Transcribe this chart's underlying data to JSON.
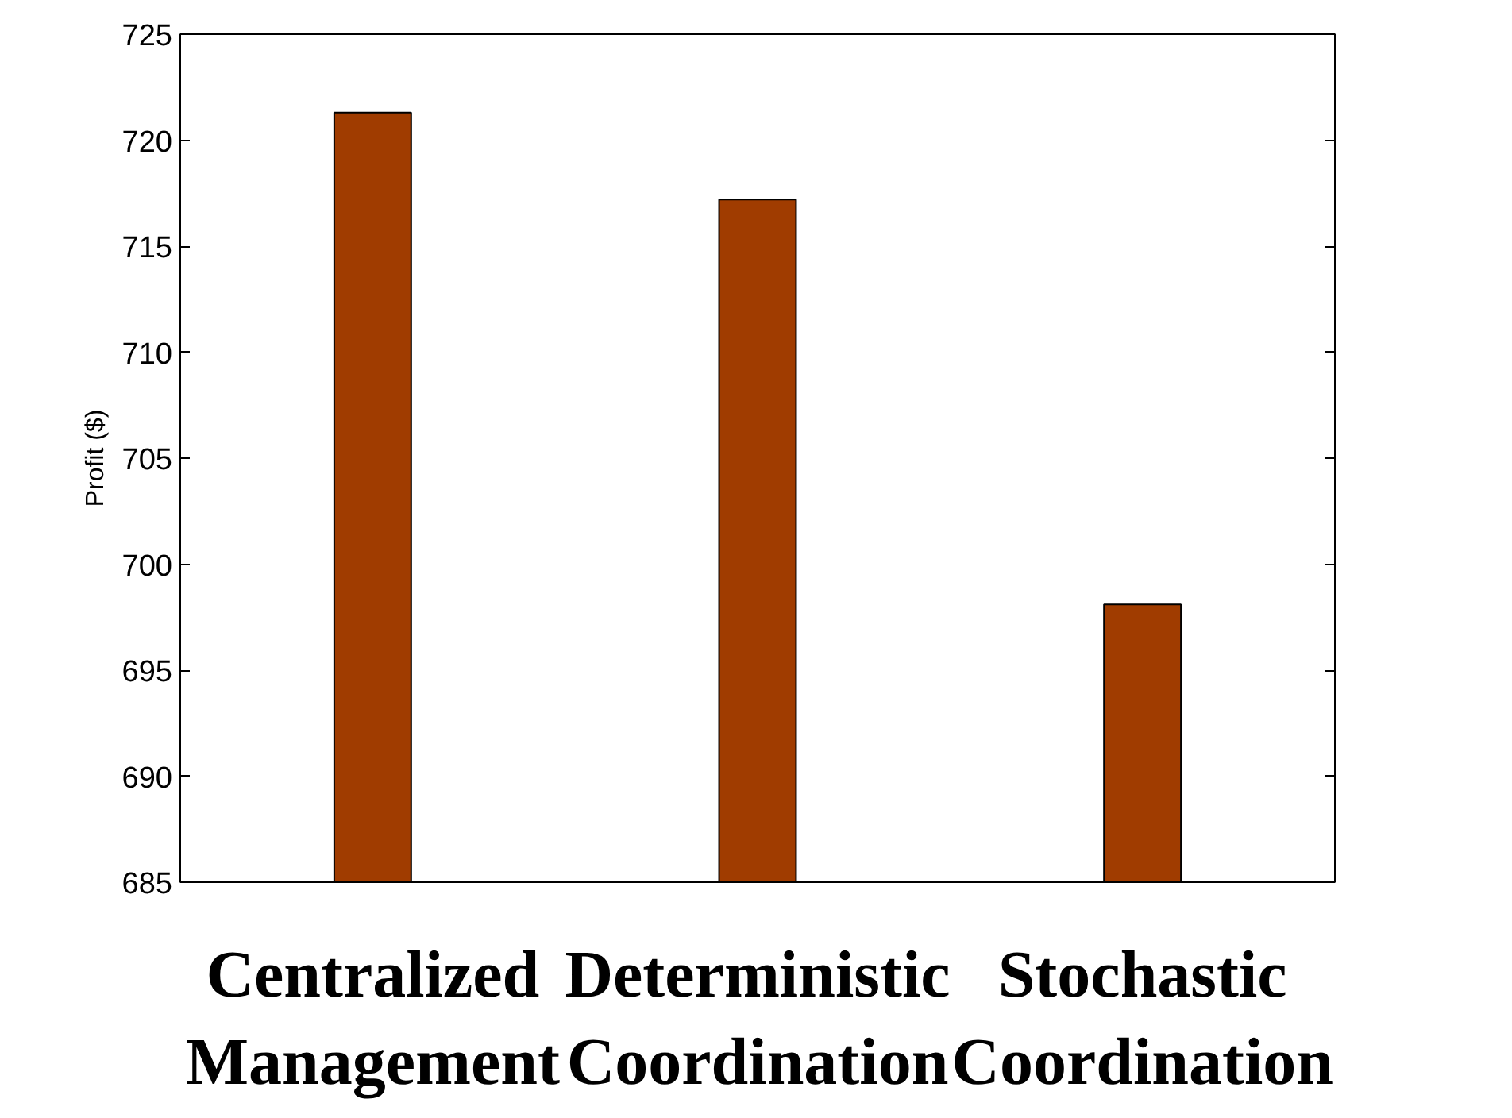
{
  "chart_data": {
    "type": "bar",
    "ylabel": "Profit ($)",
    "categories": [
      "Centralized Management",
      "Deterministic Coordination",
      "Stochastic Coordination"
    ],
    "values": [
      721.3,
      717.2,
      698.1
    ],
    "color": "#a03c00",
    "ylim": [
      685,
      725
    ],
    "yticks": [
      685,
      690,
      695,
      700,
      705,
      710,
      715,
      720,
      725
    ],
    "grid": false
  }
}
